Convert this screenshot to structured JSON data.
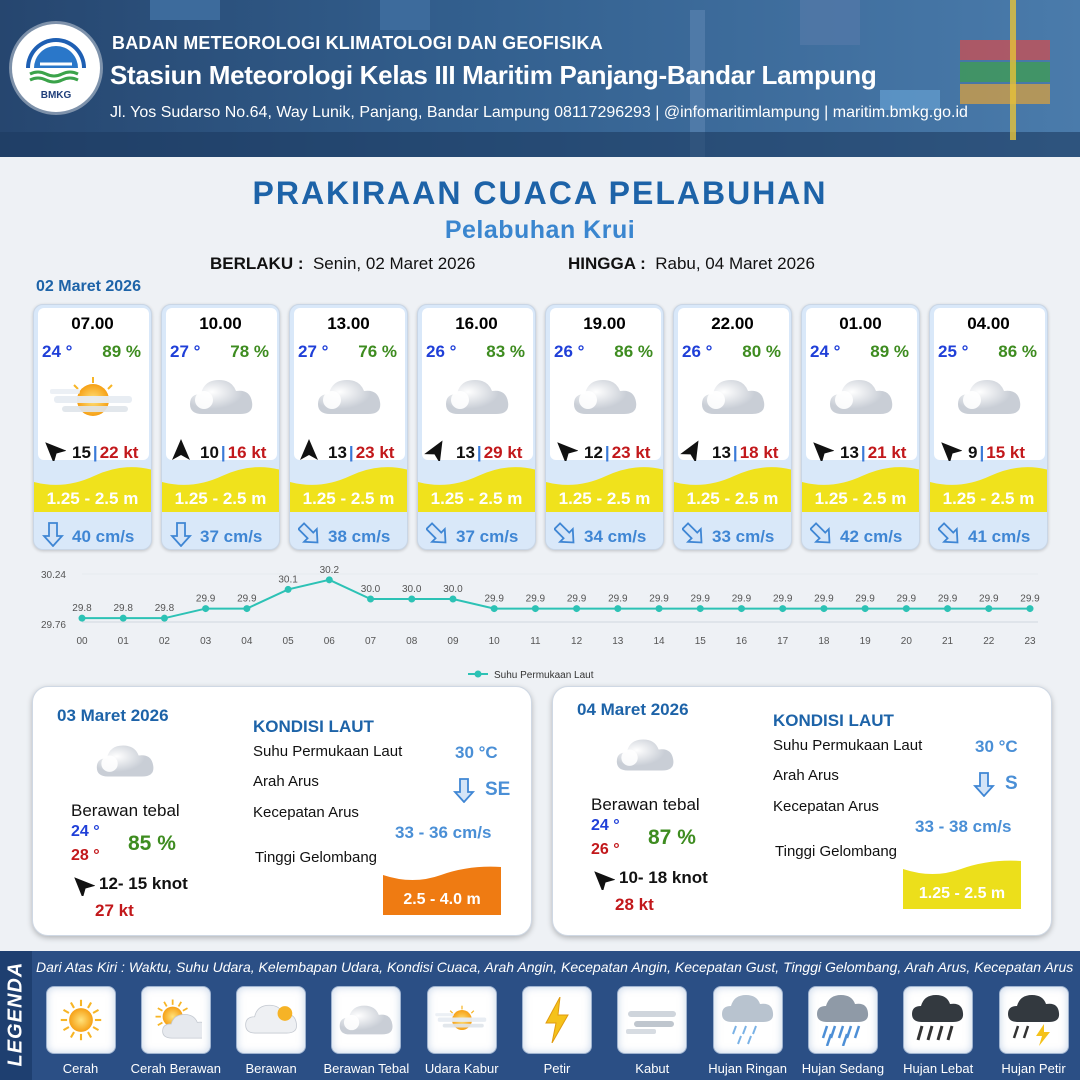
{
  "header": {
    "logo_text": "BMKG",
    "agency": "BADAN METEOROLOGI KLIMATOLOGI DAN GEOFISIKA",
    "station": "Stasiun Meteorologi Kelas III Maritim Panjang-Bandar Lampung",
    "address": "Jl. Yos Sudarso No.64, Way Lunik, Panjang, Bandar Lampung 08117296293 | @infomaritimlampung | maritim.bmkg.go.id"
  },
  "title": "PRAKIRAAN CUACA PELABUHAN",
  "subtitle": "Pelabuhan Krui",
  "validity": {
    "from_label": "BERLAKU :",
    "from_value": "Senin, 02 Maret 2026",
    "to_label": "HINGGA :",
    "to_value": "Rabu, 04 Maret 2026"
  },
  "day1_date": "02 Maret 2026",
  "cards": [
    {
      "time": "07.00",
      "temp": "24 °",
      "hum": "89 %",
      "icon": "udara-kabur",
      "wind": "15",
      "gust": "22 kt",
      "wave": "1.25 - 2.5 m",
      "current": "40 cm/s",
      "wind_dir_deg": 225,
      "cur_dir_deg": 0
    },
    {
      "time": "10.00",
      "temp": "27 °",
      "hum": "78 %",
      "icon": "berawan-tebal",
      "wind": "10",
      "gust": "16 kt",
      "wave": "1.25 - 2.5 m",
      "current": "37 cm/s",
      "wind_dir_deg": 270,
      "cur_dir_deg": 0
    },
    {
      "time": "13.00",
      "temp": "27 °",
      "hum": "76 %",
      "icon": "berawan-tebal",
      "wind": "13",
      "gust": "23 kt",
      "wave": "1.25 - 2.5 m",
      "current": "38 cm/s",
      "wind_dir_deg": 270,
      "cur_dir_deg": -45
    },
    {
      "time": "16.00",
      "temp": "26 °",
      "hum": "83 %",
      "icon": "berawan-tebal",
      "wind": "13",
      "gust": "29 kt",
      "wave": "1.25 - 2.5 m",
      "current": "37 cm/s",
      "wind_dir_deg": 300,
      "cur_dir_deg": -45
    },
    {
      "time": "19.00",
      "temp": "26 °",
      "hum": "86 %",
      "icon": "berawan-tebal",
      "wind": "12",
      "gust": "23 kt",
      "wave": "1.25 - 2.5 m",
      "current": "34 cm/s",
      "wind_dir_deg": 225,
      "cur_dir_deg": -45
    },
    {
      "time": "22.00",
      "temp": "26 °",
      "hum": "80 %",
      "icon": "berawan-tebal",
      "wind": "13",
      "gust": "18 kt",
      "wave": "1.25 - 2.5 m",
      "current": "33 cm/s",
      "wind_dir_deg": 300,
      "cur_dir_deg": -45
    },
    {
      "time": "01.00",
      "temp": "24 °",
      "hum": "89 %",
      "icon": "berawan-tebal",
      "wind": "13",
      "gust": "21 kt",
      "wave": "1.25 - 2.5 m",
      "current": "42 cm/s",
      "wind_dir_deg": 225,
      "cur_dir_deg": -45
    },
    {
      "time": "04.00",
      "temp": "25 °",
      "hum": "86 %",
      "icon": "berawan-tebal",
      "wind": "9",
      "gust": "15 kt",
      "wave": "1.25 - 2.5 m",
      "current": "41 cm/s",
      "wind_dir_deg": 225,
      "cur_dir_deg": -45
    }
  ],
  "chart_data": {
    "type": "line",
    "x": [
      "00",
      "01",
      "02",
      "03",
      "04",
      "05",
      "06",
      "07",
      "08",
      "09",
      "10",
      "11",
      "12",
      "13",
      "14",
      "15",
      "16",
      "17",
      "18",
      "19",
      "20",
      "21",
      "22",
      "23"
    ],
    "series": [
      {
        "name": "Suhu Permukaan Laut",
        "values": [
          29.8,
          29.8,
          29.8,
          29.9,
          29.9,
          30.1,
          30.2,
          30.0,
          30.0,
          30.0,
          29.9,
          29.9,
          29.9,
          29.9,
          29.9,
          29.9,
          29.9,
          29.9,
          29.9,
          29.9,
          29.9,
          29.9,
          29.9,
          29.9
        ]
      }
    ],
    "ylim": [
      29.76,
      30.24
    ],
    "yticks": [
      "30.24",
      "29.76"
    ],
    "data_labels": [
      "29.8",
      "29.8",
      "29.8",
      "29.9",
      "29.9",
      "30.1",
      "30.2",
      "30.0",
      "30.0",
      "30.0",
      "29.9",
      "29.9",
      "29.9",
      "29.9",
      "29.9",
      "29.9",
      "29.9",
      "29.9",
      "29.9",
      "29.9",
      "29.9",
      "29.9",
      "29.9",
      "29.9"
    ],
    "legend": "bottom-center",
    "color": "#2cc2b5"
  },
  "panels": [
    {
      "date": "03 Maret 2026",
      "icon": "berawan-tebal",
      "cond": "Berawan tebal",
      "tmin": "24 °",
      "tmax": "28 °",
      "hum": "85 %",
      "wind": "12- 15 knot",
      "gust": "27 kt",
      "heading": "KONDISI LAUT",
      "sst_label": "Suhu Permukaan Laut",
      "sst": "30 °C",
      "dir_label": "Arah Arus",
      "dir": "SE",
      "speed_label": "Kecepatan Arus",
      "speed": "33 - 36 cm/s",
      "wave_label": "Tinggi Gelombang",
      "wave": "2.5 - 4.0 m",
      "wave_color": "#ef7b12"
    },
    {
      "date": "04 Maret 2026",
      "icon": "berawan-tebal",
      "cond": "Berawan tebal",
      "tmin": "24 °",
      "tmax": "26 °",
      "hum": "87 %",
      "wind": "10- 18 knot",
      "gust": "28 kt",
      "heading": "KONDISI LAUT",
      "sst_label": "Suhu Permukaan Laut",
      "sst": "30 °C",
      "dir_label": "Arah Arus",
      "dir": "S",
      "speed_label": "Kecepatan Arus",
      "speed": "33 - 38 cm/s",
      "wave_label": "Tinggi Gelombang",
      "wave": "1.25 - 2.5 m",
      "wave_color": "#ecdf1b"
    }
  ],
  "legend": {
    "side_label": "LEGENDA",
    "note": "Dari Atas Kiri : Waktu, Suhu Udara, Kelembapan Udara, Kondisi Cuaca, Arah Angin, Kecepatan Angin, Kecepatan Gust, Tinggi Gelombang, Arah Arus, Kecepatan Arus",
    "items": [
      "Cerah",
      "Cerah Berawan",
      "Berawan",
      "Berawan Tebal",
      "Udara Kabur",
      "Petir",
      "Kabut",
      "Hujan Ringan",
      "Hujan Sedang",
      "Hujan Lebat",
      "Hujan Petir"
    ]
  }
}
